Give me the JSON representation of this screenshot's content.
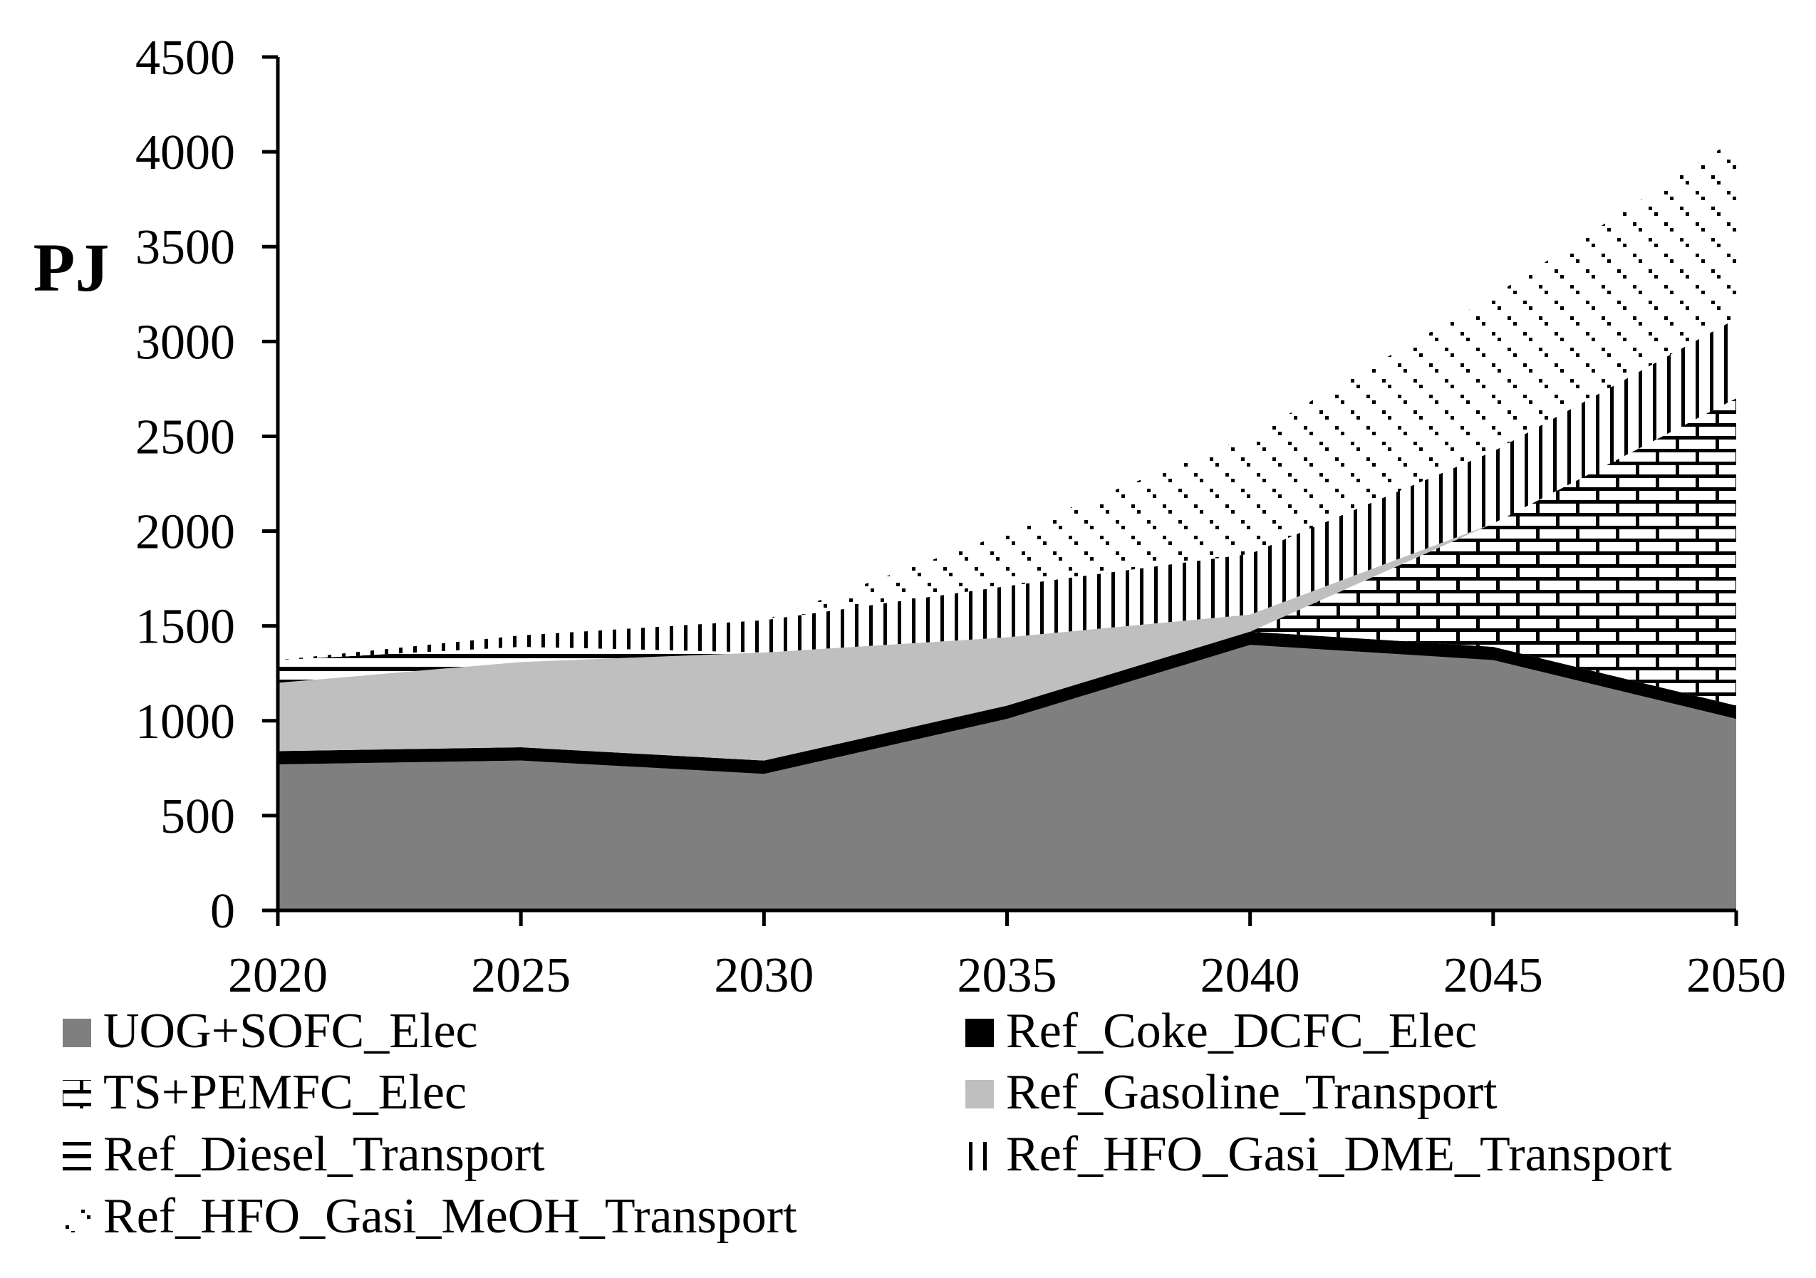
{
  "chart_data": {
    "type": "area",
    "stacked": true,
    "title": "",
    "xlabel": "",
    "ylabel": "PJ",
    "ylim": [
      0,
      4500
    ],
    "yticks": [
      0,
      500,
      1000,
      1500,
      2000,
      2500,
      3000,
      3500,
      4000,
      4500
    ],
    "categories": [
      "2020",
      "2025",
      "2030",
      "2035",
      "2040",
      "2045",
      "2050"
    ],
    "series": [
      {
        "name": "UOG+SOFC_Elec",
        "pattern": "solid-gray",
        "color": "#7f7f7f",
        "values": [
          770,
          790,
          720,
          1010,
          1400,
          1320,
          1010
        ]
      },
      {
        "name": "Ref_Coke_DCFC_Elec",
        "pattern": "solid-black",
        "color": "#000000",
        "values": [
          70,
          70,
          70,
          70,
          70,
          70,
          70
        ]
      },
      {
        "name": "TS+PEMFC_Elec",
        "pattern": "bricks",
        "color": "#000000",
        "values": [
          0,
          0,
          0,
          0,
          0,
          650,
          1620
        ]
      },
      {
        "name": "Ref_Gasoline_Transport",
        "pattern": "solid-light-gray",
        "color": "#bfbfbf",
        "values": [
          360,
          450,
          570,
          360,
          90,
          0,
          0
        ]
      },
      {
        "name": "Ref_Diesel_Transport",
        "pattern": "horizontal-lines",
        "color": "#000000",
        "values": [
          120,
          80,
          0,
          0,
          0,
          0,
          0
        ]
      },
      {
        "name": "Ref_HFO_Gasi_DME_Transport",
        "pattern": "vertical-lines",
        "color": "#000000",
        "values": [
          0,
          60,
          170,
          270,
          320,
          380,
          420
        ]
      },
      {
        "name": "Ref_HFO_Gasi_MeOH_Transport",
        "pattern": "dots",
        "color": "#000000",
        "values": [
          0,
          0,
          0,
          280,
          620,
          820,
          950
        ]
      }
    ],
    "legend_position": "bottom"
  }
}
